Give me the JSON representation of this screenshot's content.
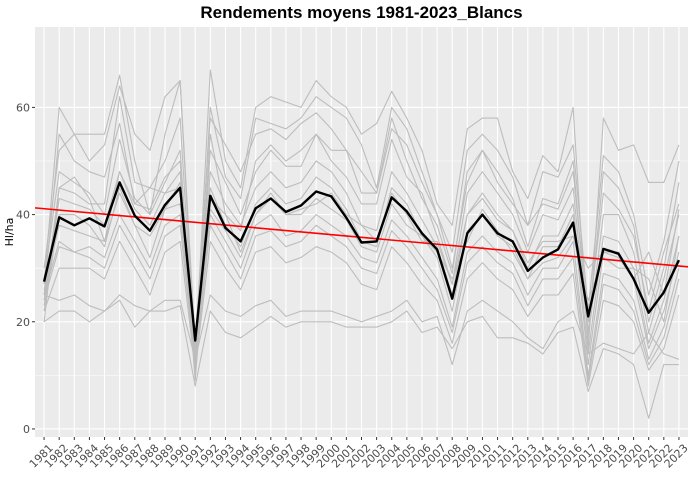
{
  "chart_data": {
    "type": "line",
    "title": "Rendements moyens 1981-2023_Blancs",
    "xlabel": "",
    "ylabel": "Hl/ha",
    "x": [
      1981,
      1982,
      1983,
      1984,
      1985,
      1986,
      1987,
      1988,
      1989,
      1990,
      1991,
      1992,
      1993,
      1994,
      1995,
      1996,
      1997,
      1998,
      1999,
      2000,
      2001,
      2002,
      2003,
      2004,
      2005,
      2006,
      2007,
      2008,
      2009,
      2010,
      2011,
      2012,
      2013,
      2014,
      2015,
      2016,
      2017,
      2018,
      2019,
      2020,
      2021,
      2022,
      2023
    ],
    "xlim": [
      1980.4,
      2023.6
    ],
    "ylim": [
      -1.5,
      75
    ],
    "y_ticks": [
      0,
      20,
      40,
      60
    ],
    "grid": true,
    "legend": "none",
    "colors": {
      "panel": "#ebebeb",
      "grid": "#ffffff",
      "background_series": "#bdbdbd",
      "mean": "#000000",
      "trend": "#ff0000",
      "tick_text": "#4d4d4d"
    },
    "mean_series": {
      "values": [
        27.5,
        39.5,
        38,
        39.3,
        37.8,
        46,
        39.8,
        37,
        41.8,
        45,
        16.5,
        43.5,
        37.5,
        35,
        41.2,
        43,
        40.5,
        41.7,
        44.3,
        43.4,
        39.4,
        34.8,
        35,
        43.2,
        40.6,
        36.5,
        33.5,
        24.3,
        36.5,
        40,
        36.5,
        35,
        29.5,
        32,
        33.5,
        38.5,
        21,
        33.6,
        32.7,
        28,
        21.7,
        25.5,
        31.5
      ]
    },
    "trend_line": {
      "y_start": 41.1,
      "y_end": 30.4
    },
    "series": [
      {
        "values": [
          27,
          60,
          55,
          55,
          55,
          66,
          50,
          40,
          55,
          65,
          13,
          67,
          50,
          45,
          60,
          62,
          61,
          60,
          65,
          62,
          60,
          55,
          57,
          63,
          58,
          52,
          42,
          38,
          56,
          58,
          58,
          48,
          43,
          51,
          48,
          60,
          15,
          58,
          52,
          53,
          46,
          46,
          53
        ]
      },
      {
        "values": [
          20,
          45,
          44,
          42,
          42,
          62,
          46,
          45,
          50,
          58,
          12,
          60,
          47,
          43,
          58,
          57,
          56,
          58,
          62,
          60,
          58,
          53,
          45,
          60,
          56,
          48,
          40,
          33,
          52,
          55,
          52,
          47,
          38,
          48,
          47,
          53,
          22,
          51,
          48,
          40,
          25,
          35,
          50
        ]
      },
      {
        "values": [
          25,
          55,
          50,
          48,
          47,
          57,
          42,
          41,
          47,
          50,
          11,
          55,
          40,
          37,
          50,
          53,
          50,
          52,
          55,
          52,
          52,
          48,
          44,
          56,
          53,
          46,
          40,
          30,
          46,
          52,
          48,
          43,
          34,
          43,
          42,
          50,
          18,
          48,
          45,
          38,
          20,
          30,
          46
        ]
      },
      {
        "values": [
          30,
          52,
          55,
          50,
          53,
          64,
          55,
          52,
          62,
          65,
          16,
          58,
          53,
          48,
          55,
          56,
          54,
          57,
          59,
          56,
          52,
          44,
          44,
          58,
          50,
          43,
          38,
          29,
          48,
          52,
          46,
          42,
          38,
          42,
          41,
          48,
          20,
          44,
          41,
          36,
          22,
          33,
          42
        ]
      },
      {
        "values": [
          28,
          48,
          46,
          44,
          40,
          54,
          43,
          40,
          46,
          52,
          10,
          52,
          46,
          40,
          48,
          52,
          49,
          49,
          55,
          50,
          47,
          42,
          42,
          54,
          47,
          44,
          36,
          27,
          44,
          48,
          44,
          40,
          33,
          40,
          39,
          45,
          17,
          40,
          40,
          33,
          18,
          28,
          40
        ]
      },
      {
        "values": [
          23,
          43,
          42,
          41,
          38,
          48,
          41,
          38,
          44,
          48,
          10,
          48,
          42,
          38,
          45,
          48,
          45,
          46,
          50,
          48,
          44,
          38,
          37,
          48,
          44,
          39,
          34,
          25,
          40,
          43,
          39,
          37,
          30,
          36,
          36,
          42,
          14,
          36,
          35,
          30,
          16,
          24,
          36
        ]
      },
      {
        "values": [
          22,
          40,
          40,
          38,
          34,
          45,
          38,
          36,
          41,
          46,
          9,
          45,
          38,
          34,
          42,
          45,
          42,
          43,
          47,
          45,
          41,
          35,
          34,
          45,
          42,
          36,
          32,
          22,
          37,
          40,
          36,
          34,
          28,
          34,
          34,
          40,
          12,
          33,
          32,
          28,
          15,
          22,
          33
        ]
      },
      {
        "values": [
          25,
          35,
          33,
          34,
          32,
          40,
          35,
          30,
          38,
          40,
          14,
          40,
          35,
          30,
          38,
          40,
          36,
          37,
          40,
          38,
          36,
          32,
          31,
          39,
          36,
          32,
          28,
          19,
          33,
          36,
          33,
          31,
          25,
          30,
          30,
          35,
          10,
          29,
          28,
          24,
          13,
          19,
          30
        ]
      },
      {
        "values": [
          24,
          34,
          33,
          32,
          30,
          38,
          33,
          28,
          36,
          38,
          12,
          38,
          33,
          28,
          36,
          37,
          34,
          35,
          38,
          36,
          34,
          30,
          29,
          37,
          34,
          30,
          26,
          18,
          31,
          34,
          31,
          29,
          23,
          28,
          28,
          32,
          9,
          27,
          26,
          22,
          12,
          17,
          28
        ]
      },
      {
        "values": [
          22,
          30,
          30,
          30,
          28,
          35,
          30,
          25,
          33,
          35,
          11,
          35,
          30,
          26,
          33,
          34,
          31,
          32,
          34,
          33,
          31,
          27,
          26,
          34,
          31,
          27,
          24,
          16,
          28,
          31,
          28,
          26,
          21,
          25,
          25,
          29,
          8,
          24,
          23,
          20,
          11,
          15,
          25
        ]
      },
      {
        "values": [
          25,
          24,
          25,
          23,
          22,
          25,
          23,
          22,
          24,
          24,
          13,
          25,
          22,
          21,
          23,
          24,
          21,
          22,
          22,
          22,
          21,
          20,
          21,
          22,
          24,
          20,
          21,
          12,
          22,
          24,
          22,
          20,
          17,
          15,
          20,
          22,
          14,
          16,
          15,
          14,
          18,
          14,
          13
        ]
      },
      {
        "values": [
          20,
          22,
          22,
          20,
          22,
          24,
          19,
          22,
          22,
          23,
          8,
          22,
          18,
          17,
          19,
          21,
          19,
          20,
          20,
          20,
          19,
          19,
          19,
          20,
          22,
          18,
          19,
          15,
          20,
          21,
          17,
          17,
          16,
          14,
          18,
          19,
          7,
          15,
          14,
          12,
          2,
          12,
          12
        ]
      },
      {
        "values": [
          24,
          45,
          47,
          43,
          35,
          48,
          42,
          45,
          44,
          45,
          14,
          43,
          40,
          33,
          40,
          44,
          40,
          41,
          42,
          44,
          40,
          38,
          35,
          44,
          40,
          35,
          35,
          27,
          40,
          44,
          40,
          37,
          31,
          35,
          35,
          36,
          30,
          33,
          33,
          28,
          33,
          25,
          41
        ]
      },
      {
        "values": [
          26,
          38,
          37,
          36,
          35,
          44,
          38,
          32,
          41,
          42,
          15,
          41,
          37,
          32,
          40,
          43,
          40,
          40,
          43,
          41,
          39,
          34,
          33,
          42,
          38,
          36,
          33,
          28,
          35,
          41,
          37,
          33,
          28,
          31,
          32,
          36,
          24,
          32,
          30,
          30,
          28,
          20,
          36
        ]
      }
    ]
  }
}
